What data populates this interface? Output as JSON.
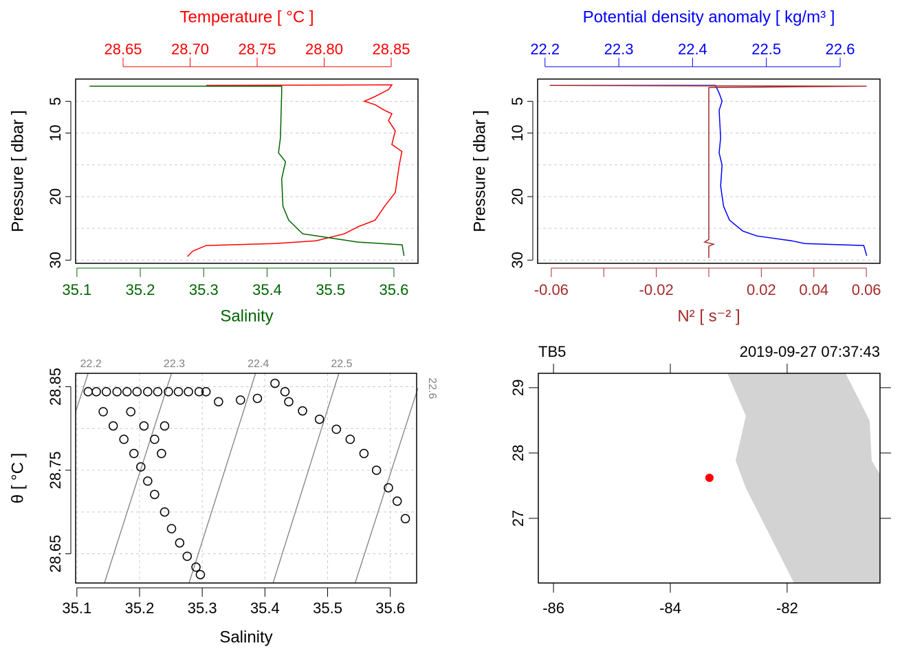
{
  "chart_data": [
    {
      "type": "profile",
      "ylabel": "Pressure [ dbar ]",
      "ylim": [
        30.5,
        1.5
      ],
      "yticks": [
        5,
        10,
        20,
        30
      ],
      "ygrid": [
        5,
        10,
        15,
        20,
        25,
        30
      ],
      "series": [
        {
          "name": "Temperature [ °C ]",
          "axis": "top",
          "color": "#ff0000",
          "xlim": [
            28.6146,
            28.87
          ],
          "xticks": [
            28.65,
            {
              "value": 28.7,
              "label": "28.70"
            },
            28.75,
            {
              "value": 28.8,
              "label": "28.80"
            },
            28.85
          ],
          "values": [
            28.712,
            28.8505,
            28.848,
            28.838,
            28.83,
            28.838,
            28.845,
            28.8505,
            28.848,
            28.853,
            28.8505,
            28.858,
            28.856,
            28.853,
            28.845,
            28.838,
            28.825,
            28.815,
            28.794,
            28.763,
            28.712,
            28.702,
            28.698
          ],
          "pressure": [
            2.51,
            2.41,
            3.16,
            4.24,
            5,
            5.54,
            6.41,
            6.95,
            8.03,
            9.65,
            11.81,
            12.89,
            15.05,
            19.38,
            21.54,
            23.7,
            24.78,
            25.86,
            26.95,
            27.38,
            27.7,
            28.57,
            29.43
          ]
        },
        {
          "name": "Salinity",
          "axis": "bottom",
          "color": "#006400",
          "xlim": [
            35.098,
            35.638
          ],
          "xticks": [
            35.1,
            35.2,
            35.3,
            35.4,
            35.5,
            35.6
          ],
          "values": [
            35.12,
            35.423,
            35.423,
            35.421,
            35.418,
            35.429,
            35.423,
            35.425,
            35.434,
            35.456,
            35.499,
            35.543,
            35.613,
            35.616
          ],
          "pressure": [
            2.62,
            2.62,
            3.7,
            10.73,
            13.11,
            14.51,
            17.22,
            21.54,
            23.7,
            25.86,
            26.5,
            27.16,
            27.59,
            29.32
          ]
        }
      ]
    },
    {
      "type": "profile",
      "ylabel": "Pressure [ dbar ]",
      "ylim": [
        30.5,
        1.5
      ],
      "yticks": [
        5,
        10,
        20,
        30
      ],
      "ygrid": [
        5,
        10,
        15,
        20,
        25,
        30
      ],
      "series": [
        {
          "name": "Potential density anomaly [ kg/m³ ]",
          "axis": "top",
          "color": "#0000ff",
          "xlim": [
            22.19,
            22.654
          ],
          "xticks": [
            22.2,
            22.3,
            22.4,
            22.5,
            22.6
          ],
          "values": [
            22.211,
            22.431,
            22.436,
            22.44,
            22.436,
            22.438,
            22.436,
            22.44,
            22.438,
            22.442,
            22.45,
            22.468,
            22.487,
            22.534,
            22.552,
            22.632,
            22.636
          ],
          "pressure": [
            2.51,
            2.51,
            3.7,
            5,
            6.41,
            10.73,
            13.11,
            15.05,
            18.3,
            21.54,
            23.7,
            25.43,
            26.19,
            26.95,
            27.38,
            27.7,
            29.32
          ]
        },
        {
          "name": "N² [ s⁻² ]",
          "axis": "bottom",
          "color": "#a52a2a",
          "xlim": [
            -0.0652,
            0.0652
          ],
          "xticks": [
            -0.06,
            -0.02,
            0.02,
            0.04,
            0.06
          ],
          "xminorticks": [
            -0.04,
            0
          ],
          "values": [
            -0.0606,
            0.0601,
            0,
            0,
            -0.0016,
            0.0018,
            0,
            0
          ],
          "pressure": [
            2.51,
            2.62,
            2.84,
            26.73,
            27.16,
            27.49,
            27.81,
            29.65
          ]
        }
      ]
    },
    {
      "type": "scatter",
      "xlabel": "Salinity",
      "ylabel": "θ [ °C ]",
      "xlim": [
        35.098,
        35.642
      ],
      "ylim": [
        28.615,
        28.866
      ],
      "xticks": [
        35.1,
        35.2,
        35.3,
        35.4,
        35.5,
        35.6
      ],
      "yticks": [
        28.65,
        28.75,
        28.85
      ],
      "ygrid": [
        28.65,
        28.7,
        28.75,
        28.8,
        28.85
      ],
      "grid": true,
      "color": "#000000",
      "isopycnal_color": "#808080",
      "isopycnals": [
        {
          "level": 22.2,
          "S": [
            35.098,
            35.118
          ],
          "theta": [
            28.82,
            28.866
          ]
        },
        {
          "level": 22.3,
          "S": [
            35.144,
            35.251
          ],
          "theta": [
            28.615,
            28.866
          ]
        },
        {
          "level": 22.4,
          "S": [
            35.279,
            35.385
          ],
          "theta": [
            28.615,
            28.866
          ]
        },
        {
          "level": 22.5,
          "S": [
            35.413,
            35.518
          ],
          "theta": [
            28.615,
            28.866
          ]
        },
        {
          "level": 22.6,
          "S": [
            35.544,
            35.644
          ],
          "theta": [
            28.615,
            28.848
          ]
        }
      ],
      "x": [
        35.118,
        35.131,
        35.147,
        35.164,
        35.18,
        35.196,
        35.213,
        35.229,
        35.246,
        35.262,
        35.278,
        35.295,
        35.306,
        35.142,
        35.158,
        35.175,
        35.191,
        35.202,
        35.186,
        35.207,
        35.224,
        35.235,
        35.24,
        35.213,
        35.224,
        35.24,
        35.251,
        35.264,
        35.276,
        35.29,
        35.297,
        35.326,
        35.361,
        35.388,
        35.416,
        35.432,
        35.438,
        35.46,
        35.487,
        35.514,
        35.536,
        35.558,
        35.578,
        35.597,
        35.611,
        35.624
      ],
      "values": [
        28.844,
        28.844,
        28.844,
        28.844,
        28.844,
        28.844,
        28.844,
        28.844,
        28.844,
        28.844,
        28.844,
        28.844,
        28.844,
        28.82,
        28.803,
        28.787,
        28.77,
        28.754,
        28.82,
        28.803,
        28.787,
        28.77,
        28.803,
        28.737,
        28.721,
        28.7,
        28.68,
        28.663,
        28.647,
        28.634,
        28.625,
        28.832,
        28.834,
        28.836,
        28.854,
        28.844,
        28.832,
        28.821,
        28.811,
        28.799,
        28.787,
        28.77,
        28.75,
        28.729,
        28.713,
        28.692
      ]
    },
    {
      "type": "map",
      "title_left": "TB5",
      "title_right": "2019-09-27 07:37:43",
      "xlim": [
        -86.26,
        -80.41
      ],
      "ylim": [
        26.01,
        29.22
      ],
      "xticks": [
        -86,
        -84,
        -82
      ],
      "yticks": [
        27,
        28,
        29
      ],
      "land": {
        "color": "#d3d3d3",
        "lon": [
          -83.024,
          -82.706,
          -82.882,
          -82.706,
          -81.882,
          -80.412,
          -80.412,
          -80.553,
          -80.588,
          -81.0
        ],
        "lat": [
          29.221,
          28.568,
          27.884,
          27.463,
          26.011,
          26.011,
          27.674,
          27.884,
          28.495,
          29.221
        ]
      },
      "station": {
        "lon": -83.33,
        "lat": 27.62,
        "color": "#ff0000"
      }
    }
  ]
}
